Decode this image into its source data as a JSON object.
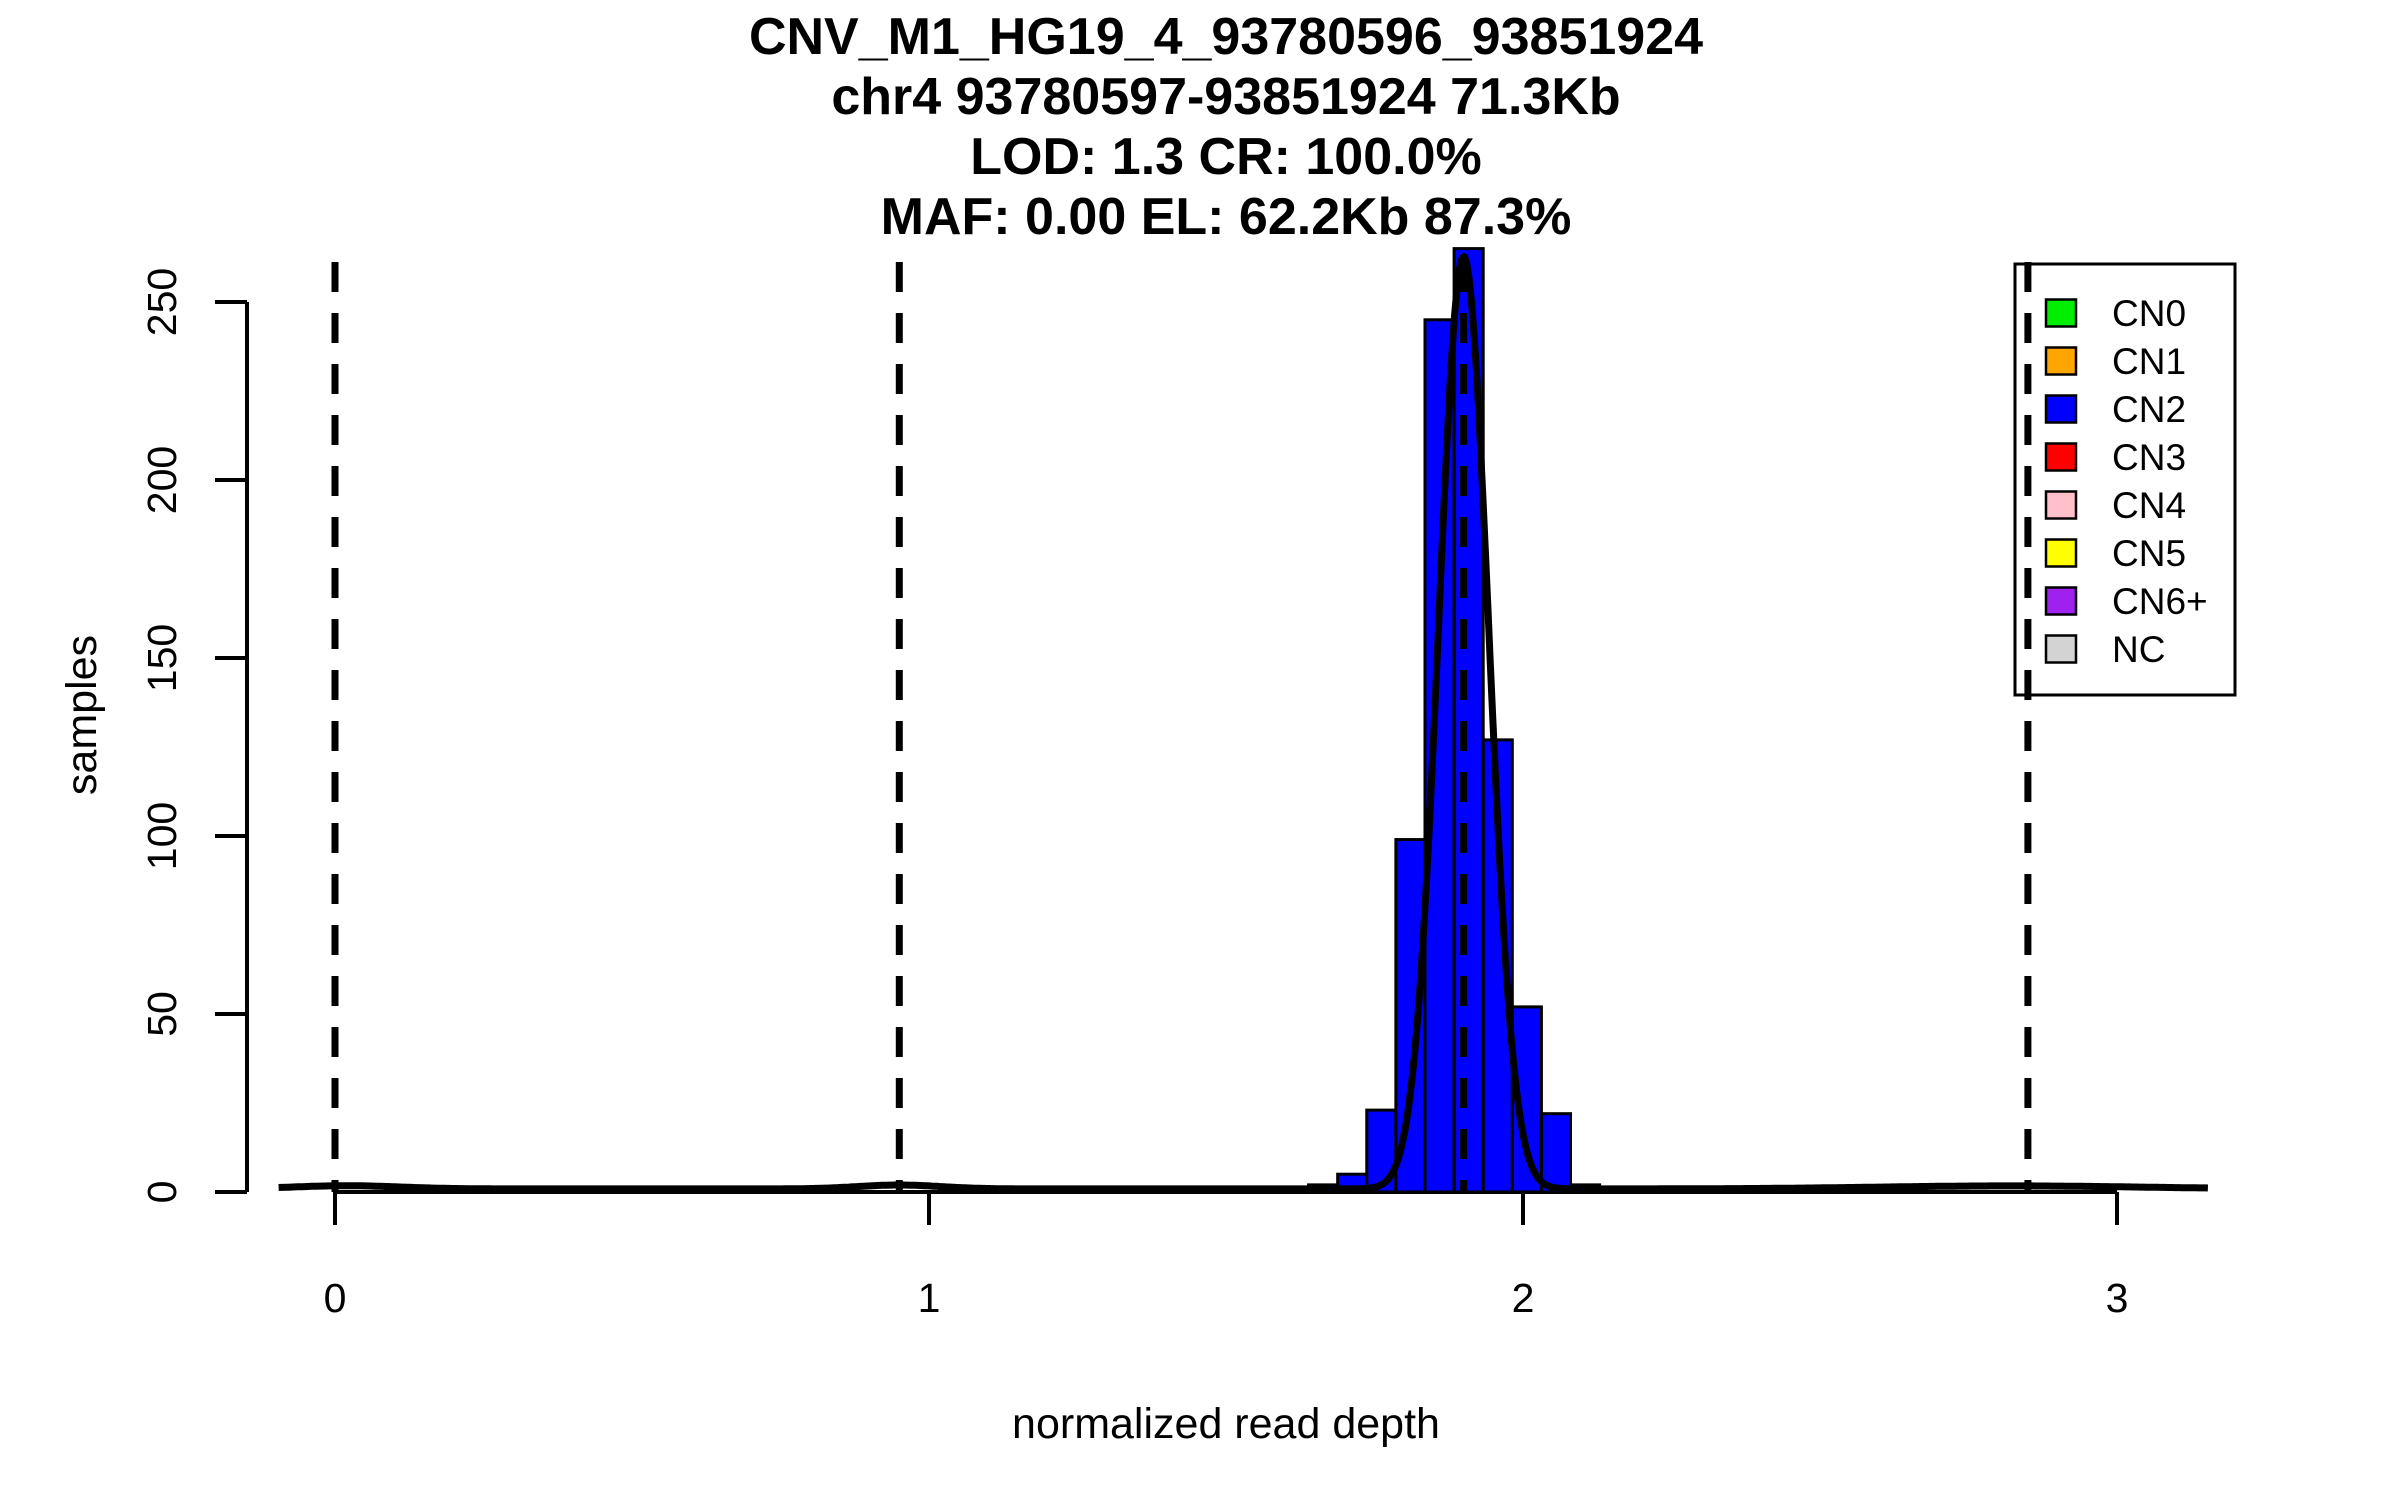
{
  "page": {
    "background": "#FFFFFF"
  },
  "title": {
    "line1": "CNV_M1_HG19_4_93780596_93851924",
    "line2": "chr4 93780597-93851924 71.3Kb",
    "line3": "LOD: 1.3 CR: 100.0%",
    "line4": "MAF: 0.00 EL: 62.2Kb 87.3%"
  },
  "axes": {
    "x": {
      "label": "normalized read depth",
      "tick_values": [
        0,
        1,
        2,
        3
      ]
    },
    "y": {
      "label": "samples",
      "tick_values": [
        0,
        50,
        100,
        150,
        200,
        250
      ]
    }
  },
  "legend": {
    "items": [
      {
        "label": "CN0",
        "color": "#00EE00"
      },
      {
        "label": "CN1",
        "color": "#FFA500"
      },
      {
        "label": "CN2",
        "color": "#0000FF"
      },
      {
        "label": "CN3",
        "color": "#FF0000"
      },
      {
        "label": "CN4",
        "color": "#FFC0CB"
      },
      {
        "label": "CN5",
        "color": "#FFFF00"
      },
      {
        "label": "CN6+",
        "color": "#A020F0"
      },
      {
        "label": "NC",
        "color": "#D3D3D3"
      }
    ]
  },
  "colors": {
    "bar_fill": "#0000FF",
    "stroke": "#000000",
    "text": "#000000"
  },
  "chart_data": {
    "type": "bar",
    "subtype": "histogram-with-gaussian-fit",
    "title": "CNV_M1_HG19_4_93780596_93851924",
    "subtitle_lines": [
      "chr4 93780597-93851924 71.3Kb",
      "LOD: 1.3 CR: 100.0%",
      "MAF: 0.00 EL: 62.2Kb 87.3%"
    ],
    "xlabel": "normalized read depth",
    "ylabel": "samples",
    "xlim": [
      -0.095,
      3.155
    ],
    "ylim": [
      0,
      272
    ],
    "x_ticks": [
      0,
      1,
      2,
      3
    ],
    "y_ticks": [
      0,
      50,
      100,
      150,
      200,
      250
    ],
    "grid": false,
    "legend_position": "top-right",
    "histogram": {
      "series_label": "CN2",
      "bin_start": 1.639,
      "bin_width": 0.049,
      "counts": [
        2,
        5,
        23,
        99,
        245,
        265,
        127,
        52,
        22,
        2,
        1
      ]
    },
    "fit_curve": {
      "type": "gaussian_mixture",
      "baseline": 0.3,
      "components": [
        {
          "mean": 1.9,
          "sd": 0.042,
          "peak": 262
        },
        {
          "mean": 0.02,
          "sd": 0.09,
          "peak": 0.9
        },
        {
          "mean": 0.95,
          "sd": 0.07,
          "peak": 1.1
        },
        {
          "mean": 2.82,
          "sd": 0.22,
          "peak": 0.85
        }
      ]
    },
    "dashed_lines_x": [
      0,
      0.95,
      1.9,
      2.85
    ]
  }
}
